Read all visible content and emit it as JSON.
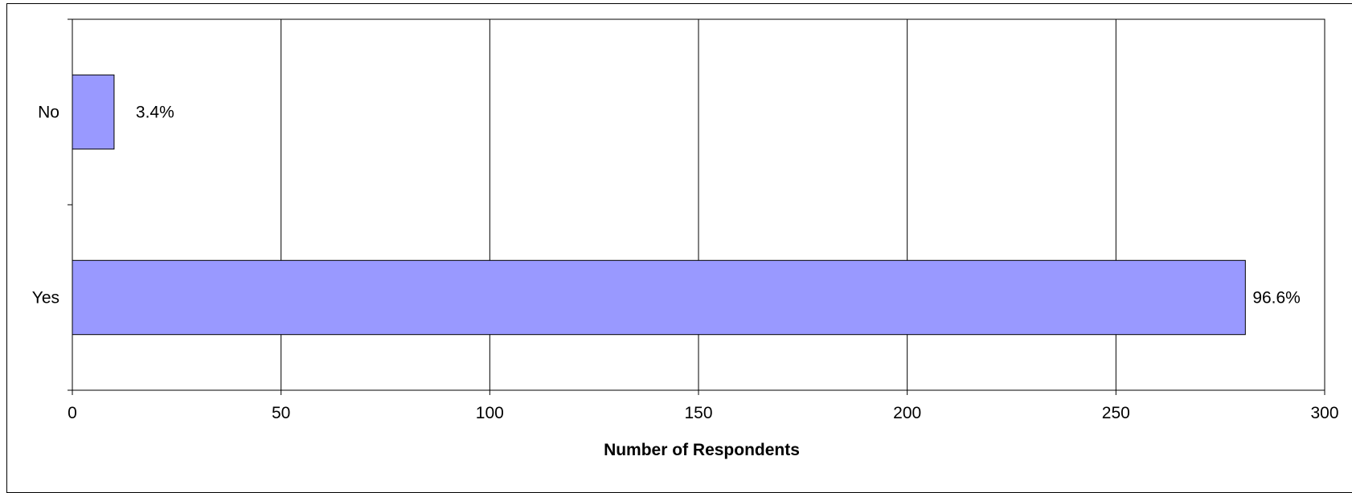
{
  "chart_data": {
    "type": "bar",
    "orientation": "horizontal",
    "categories": [
      "No",
      "Yes"
    ],
    "values": [
      10,
      281
    ],
    "data_labels": [
      "3.4%",
      "96.6%"
    ],
    "title": "",
    "xlabel": "Number of Respondents",
    "ylabel": "",
    "xlim": [
      0,
      300
    ],
    "x_ticks": [
      0,
      50,
      100,
      150,
      200,
      250,
      300
    ],
    "grid": "vertical major gridlines",
    "legend": "none",
    "colors": {
      "bar_fill": "#9999ff",
      "bar_stroke": "#000000",
      "gridline": "#000000",
      "background": "#ffffff"
    }
  }
}
